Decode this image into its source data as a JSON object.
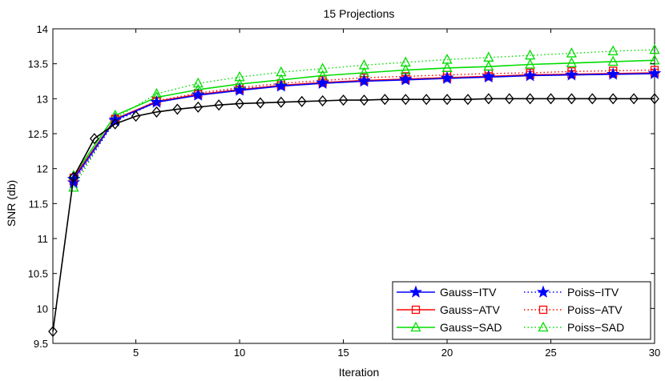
{
  "chart_data": {
    "type": "line",
    "title": "15 Projections",
    "xlabel": "Iteration",
    "ylabel": "SNR (db)",
    "xlim": [
      1,
      30
    ],
    "ylim": [
      9.5,
      14
    ],
    "xticks": [
      5,
      10,
      15,
      20,
      25,
      30
    ],
    "yticks": [
      9.5,
      10,
      10.5,
      11,
      11.5,
      12,
      12.5,
      13,
      13.5,
      14
    ],
    "legend_position": "bottom-right",
    "grid": false,
    "series": [
      {
        "name": "Gauss−ITV",
        "color": "#0000ff",
        "marker": "star",
        "style": "solid",
        "x": [
          2,
          4,
          6,
          8,
          10,
          12,
          14,
          16,
          18,
          20,
          22,
          24,
          26,
          28,
          30
        ],
        "y": [
          11.85,
          12.7,
          12.95,
          13.05,
          13.12,
          13.18,
          13.22,
          13.25,
          13.27,
          13.29,
          13.31,
          13.33,
          13.34,
          13.35,
          13.36
        ]
      },
      {
        "name": "Gauss−ATV",
        "color": "#ff0000",
        "marker": "square",
        "style": "solid",
        "x": [
          2,
          4,
          6,
          8,
          10,
          12,
          14,
          16,
          18,
          20,
          22,
          24,
          26,
          28,
          30
        ],
        "y": [
          11.87,
          12.71,
          12.96,
          13.06,
          13.13,
          13.19,
          13.23,
          13.26,
          13.28,
          13.3,
          13.32,
          13.34,
          13.35,
          13.36,
          13.37
        ]
      },
      {
        "name": "Gauss−SAD",
        "color": "#00dd00",
        "marker": "triangle",
        "style": "solid",
        "x": [
          2,
          4,
          6,
          8,
          10,
          12,
          14,
          16,
          18,
          20,
          22,
          24,
          26,
          28,
          30
        ],
        "y": [
          11.9,
          12.76,
          13.02,
          13.13,
          13.21,
          13.27,
          13.33,
          13.37,
          13.41,
          13.44,
          13.46,
          13.49,
          13.51,
          13.53,
          13.55
        ]
      },
      {
        "name": "Poiss−ITV",
        "color": "#0000ff",
        "marker": "star",
        "style": "dotted",
        "x": [
          2,
          4,
          6,
          8,
          10,
          12,
          14,
          16,
          18,
          20,
          22,
          24,
          26,
          28,
          30
        ],
        "y": [
          11.8,
          12.68,
          12.95,
          13.06,
          13.14,
          13.19,
          13.23,
          13.26,
          13.28,
          13.3,
          13.32,
          13.33,
          13.34,
          13.35,
          13.36
        ]
      },
      {
        "name": "Poiss−ATV",
        "color": "#ff0000",
        "marker": "square",
        "style": "dotted",
        "x": [
          2,
          4,
          6,
          8,
          10,
          12,
          14,
          16,
          18,
          20,
          22,
          24,
          26,
          28,
          30
        ],
        "y": [
          11.82,
          12.7,
          12.97,
          13.08,
          13.16,
          13.22,
          13.26,
          13.3,
          13.32,
          13.34,
          13.36,
          13.37,
          13.39,
          13.4,
          13.41
        ]
      },
      {
        "name": "Poiss−SAD",
        "color": "#00dd00",
        "marker": "triangle",
        "style": "dotted",
        "x": [
          2,
          4,
          6,
          8,
          10,
          12,
          14,
          16,
          18,
          20,
          22,
          24,
          26,
          28,
          30
        ],
        "y": [
          11.73,
          12.72,
          13.07,
          13.22,
          13.31,
          13.38,
          13.43,
          13.48,
          13.52,
          13.56,
          13.59,
          13.62,
          13.65,
          13.68,
          13.7
        ]
      },
      {
        "name": "",
        "color": "#000000",
        "marker": "diamond",
        "style": "solid",
        "x": [
          1,
          2,
          3,
          4,
          5,
          6,
          7,
          8,
          9,
          10,
          11,
          12,
          13,
          14,
          15,
          16,
          17,
          18,
          19,
          20,
          21,
          22,
          23,
          24,
          25,
          26,
          27,
          28,
          29,
          30
        ],
        "y": [
          9.67,
          11.88,
          12.43,
          12.64,
          12.75,
          12.81,
          12.85,
          12.88,
          12.91,
          12.93,
          12.94,
          12.95,
          12.96,
          12.97,
          12.98,
          12.98,
          12.99,
          12.99,
          12.99,
          12.99,
          12.99,
          13.0,
          13.0,
          13.0,
          13.0,
          13.0,
          13.0,
          13.0,
          13.0,
          13.0
        ]
      }
    ],
    "legend_columns": [
      [
        0,
        1,
        2
      ],
      [
        3,
        4,
        5
      ]
    ]
  }
}
